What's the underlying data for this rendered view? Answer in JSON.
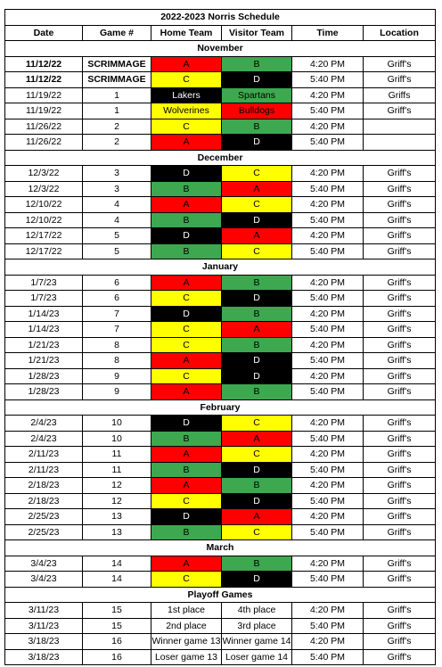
{
  "title": "2022-2023 Norris Schedule",
  "headers": [
    "Date",
    "Game #",
    "Home Team",
    "Visitor Team",
    "Time",
    "Location"
  ],
  "colors": {
    "red": "#ff0000",
    "green": "#3da850",
    "black": "#000000",
    "yellow": "#ffff00",
    "white": "#ffffff"
  },
  "sections": [
    {
      "name": "November",
      "rows": [
        {
          "date": "11/12/22",
          "game": "SCRIMMAGE",
          "bold": true,
          "home": {
            "label": "A",
            "color": "red"
          },
          "visitor": {
            "label": "B",
            "color": "green"
          },
          "time": "4:20 PM",
          "location": "Griff's"
        },
        {
          "date": "11/12/22",
          "game": "SCRIMMAGE",
          "bold": true,
          "home": {
            "label": "C",
            "color": "yellow"
          },
          "visitor": {
            "label": "D",
            "color": "black"
          },
          "time": "5:40 PM",
          "location": "Griff's"
        },
        {
          "date": "11/19/22",
          "game": "1",
          "home": {
            "label": "Lakers",
            "color": "black"
          },
          "visitor": {
            "label": "Spartans",
            "color": "green"
          },
          "time": "4:20 PM",
          "location": "Griffs"
        },
        {
          "date": "11/19/22",
          "game": "1",
          "home": {
            "label": "Wolverines",
            "color": "yellow"
          },
          "visitor": {
            "label": "Bulldogs",
            "color": "red"
          },
          "time": "5:40 PM",
          "location": "Griff's"
        },
        {
          "date": "11/26/22",
          "game": "2",
          "home": {
            "label": "C",
            "color": "yellow"
          },
          "visitor": {
            "label": "B",
            "color": "green"
          },
          "time": "4:20 PM",
          "location": ""
        },
        {
          "date": "11/26/22",
          "game": "2",
          "home": {
            "label": "A",
            "color": "red"
          },
          "visitor": {
            "label": "D",
            "color": "black"
          },
          "time": "5:40 PM",
          "location": ""
        }
      ]
    },
    {
      "name": "December",
      "rows": [
        {
          "date": "12/3/22",
          "game": "3",
          "home": {
            "label": "D",
            "color": "black"
          },
          "visitor": {
            "label": "C",
            "color": "yellow"
          },
          "time": "4:20 PM",
          "location": "Griff's"
        },
        {
          "date": "12/3/22",
          "game": "3",
          "home": {
            "label": "B",
            "color": "green"
          },
          "visitor": {
            "label": "A",
            "color": "red"
          },
          "time": "5:40 PM",
          "location": "Griff's"
        },
        {
          "date": "12/10/22",
          "game": "4",
          "home": {
            "label": "A",
            "color": "red"
          },
          "visitor": {
            "label": "C",
            "color": "yellow"
          },
          "time": "4:20 PM",
          "location": "Griff's"
        },
        {
          "date": "12/10/22",
          "game": "4",
          "home": {
            "label": "B",
            "color": "green"
          },
          "visitor": {
            "label": "D",
            "color": "black"
          },
          "time": "5:40 PM",
          "location": "Griff's"
        },
        {
          "date": "12/17/22",
          "game": "5",
          "home": {
            "label": "D",
            "color": "black"
          },
          "visitor": {
            "label": "A",
            "color": "red"
          },
          "time": "4:20 PM",
          "location": "Griff's"
        },
        {
          "date": "12/17/22",
          "game": "5",
          "home": {
            "label": "B",
            "color": "green"
          },
          "visitor": {
            "label": "C",
            "color": "yellow"
          },
          "time": "5:40 PM",
          "location": "Griff's"
        }
      ]
    },
    {
      "name": "January",
      "rows": [
        {
          "date": "1/7/23",
          "game": "6",
          "home": {
            "label": "A",
            "color": "red"
          },
          "visitor": {
            "label": "B",
            "color": "green"
          },
          "time": "4:20 PM",
          "location": "Griff's"
        },
        {
          "date": "1/7/23",
          "game": "6",
          "home": {
            "label": "C",
            "color": "yellow"
          },
          "visitor": {
            "label": "D",
            "color": "black"
          },
          "time": "5:40 PM",
          "location": "Griff's"
        },
        {
          "date": "1/14/23",
          "game": "7",
          "home": {
            "label": "D",
            "color": "black"
          },
          "visitor": {
            "label": "B",
            "color": "green"
          },
          "time": "4:20 PM",
          "location": "Griff's"
        },
        {
          "date": "1/14/23",
          "game": "7",
          "home": {
            "label": "C",
            "color": "yellow"
          },
          "visitor": {
            "label": "A",
            "color": "red"
          },
          "time": "5:40 PM",
          "location": "Griff's"
        },
        {
          "date": "1/21/23",
          "game": "8",
          "home": {
            "label": "C",
            "color": "yellow"
          },
          "visitor": {
            "label": "B",
            "color": "green"
          },
          "time": "4:20 PM",
          "location": "Griff's"
        },
        {
          "date": "1/21/23",
          "game": "8",
          "home": {
            "label": "A",
            "color": "red"
          },
          "visitor": {
            "label": "D",
            "color": "black"
          },
          "time": "5:40 PM",
          "location": "Griff's"
        },
        {
          "date": "1/28/23",
          "game": "9",
          "home": {
            "label": "C",
            "color": "yellow"
          },
          "visitor": {
            "label": "D",
            "color": "black"
          },
          "time": "4:20 PM",
          "location": "Griff's"
        },
        {
          "date": "1/28/23",
          "game": "9",
          "home": {
            "label": "A",
            "color": "red"
          },
          "visitor": {
            "label": "B",
            "color": "green"
          },
          "time": "5:40 PM",
          "location": "Griff's"
        }
      ]
    },
    {
      "name": "February",
      "rows": [
        {
          "date": "2/4/23",
          "game": "10",
          "home": {
            "label": "D",
            "color": "black"
          },
          "visitor": {
            "label": "C",
            "color": "yellow"
          },
          "time": "4:20 PM",
          "location": "Griff's"
        },
        {
          "date": "2/4/23",
          "game": "10",
          "home": {
            "label": "B",
            "color": "green"
          },
          "visitor": {
            "label": "A",
            "color": "red"
          },
          "time": "5:40 PM",
          "location": "Griff's"
        },
        {
          "date": "2/11/23",
          "game": "11",
          "home": {
            "label": "A",
            "color": "red"
          },
          "visitor": {
            "label": "C",
            "color": "yellow"
          },
          "time": "4:20 PM",
          "location": "Griff's"
        },
        {
          "date": "2/11/23",
          "game": "11",
          "home": {
            "label": "B",
            "color": "green"
          },
          "visitor": {
            "label": "D",
            "color": "black"
          },
          "time": "5:40 PM",
          "location": "Griff's"
        },
        {
          "date": "2/18/23",
          "game": "12",
          "home": {
            "label": "A",
            "color": "red"
          },
          "visitor": {
            "label": "B",
            "color": "green"
          },
          "time": "4:20 PM",
          "location": "Griff's"
        },
        {
          "date": "2/18/23",
          "game": "12",
          "home": {
            "label": "C",
            "color": "yellow"
          },
          "visitor": {
            "label": "D",
            "color": "black"
          },
          "time": "5:40 PM",
          "location": "Griff's"
        },
        {
          "date": "2/25/23",
          "game": "13",
          "home": {
            "label": "D",
            "color": "black"
          },
          "visitor": {
            "label": "A",
            "color": "red"
          },
          "time": "4:20 PM",
          "location": "Griff's"
        },
        {
          "date": "2/25/23",
          "game": "13",
          "home": {
            "label": "B",
            "color": "green"
          },
          "visitor": {
            "label": "C",
            "color": "yellow"
          },
          "time": "5:40 PM",
          "location": "Griff's"
        }
      ]
    },
    {
      "name": "March",
      "rows": [
        {
          "date": "3/4/23",
          "game": "14",
          "home": {
            "label": "A",
            "color": "red"
          },
          "visitor": {
            "label": "B",
            "color": "green"
          },
          "time": "4:20 PM",
          "location": "Griff's"
        },
        {
          "date": "3/4/23",
          "game": "14",
          "home": {
            "label": "C",
            "color": "yellow"
          },
          "visitor": {
            "label": "D",
            "color": "black"
          },
          "time": "5:40 PM",
          "location": "Griff's"
        }
      ]
    },
    {
      "name": "Playoff Games",
      "rows": [
        {
          "date": "3/11/23",
          "game": "15",
          "home": {
            "label": "1st place",
            "color": "white"
          },
          "visitor": {
            "label": "4th place",
            "color": "white"
          },
          "time": "4:20 PM",
          "location": "Griff's"
        },
        {
          "date": "3/11/23",
          "game": "15",
          "home": {
            "label": "2nd place",
            "color": "white"
          },
          "visitor": {
            "label": "3rd place",
            "color": "white"
          },
          "time": "5:40 PM",
          "location": "Griff's"
        },
        {
          "date": "3/18/23",
          "game": "16",
          "home": {
            "label": "Winner game 13",
            "color": "white"
          },
          "visitor": {
            "label": "Winner game 14",
            "color": "white"
          },
          "time": "4:20 PM",
          "location": "Griff's"
        },
        {
          "date": "3/18/23",
          "game": "16",
          "home": {
            "label": "Loser game 13",
            "color": "white"
          },
          "visitor": {
            "label": "Loser game 14",
            "color": "white"
          },
          "time": "5:40 PM",
          "location": "Griff's"
        }
      ]
    }
  ]
}
